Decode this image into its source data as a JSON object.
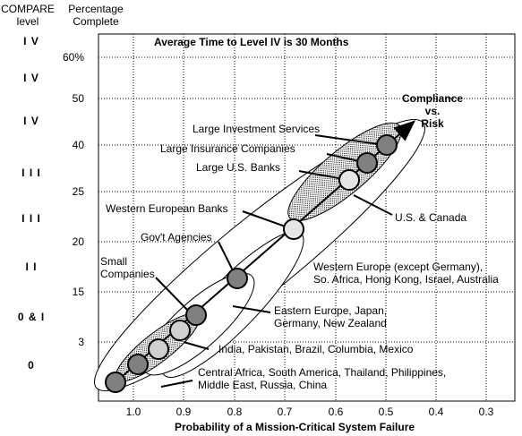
{
  "headers": {
    "compare_level": "COMPARE\nlevel",
    "percentage_complete": "Percentage\nComplete"
  },
  "title": "Average Time to Level IV is 30 Months",
  "x_axis_label": "Probability of a Mission-Critical System Failure",
  "compliance_label": "Compliance\nvs.\nRisk",
  "levels": [
    "I V",
    "I V",
    "I V",
    "I I I",
    "I I I",
    "I I",
    "0 & I",
    "0"
  ],
  "y_ticks": [
    "60%",
    "50",
    "40",
    "25",
    "20",
    "15",
    "3"
  ],
  "x_ticks": [
    "1.0",
    "0.9",
    "0.8",
    "0.7",
    "0.6",
    "0.5",
    "0.4",
    "0.3"
  ],
  "labels": {
    "large_investment_services": "Large Investment Services",
    "large_insurance_companies": "Large Insurance Companies",
    "large_us_banks": "Large U.S. Banks",
    "western_european_banks": "Western European Banks",
    "govt_agencies": "Gov't Agencies",
    "small_companies": "Small\nCompanies",
    "us_canada": "U.S. & Canada",
    "western_europe": "Western Europe (except Germany),\nSo. Africa, Hong Kong, Israel, Australia",
    "eastern_europe": "Eastern Europe, Japan,\nGermany, New Zealand",
    "india_etc": "India, Pakistan, Brazil, Columbia, Mexico",
    "central_africa_etc": "Central Africa, South America, Thailand, Philippines,\nMiddle East, Russia, China"
  },
  "colors": {
    "dark_node": "#808080",
    "light_node": "#d0d0d0",
    "lightest_node": "#e6e6e6",
    "stipple": "#000000"
  }
}
